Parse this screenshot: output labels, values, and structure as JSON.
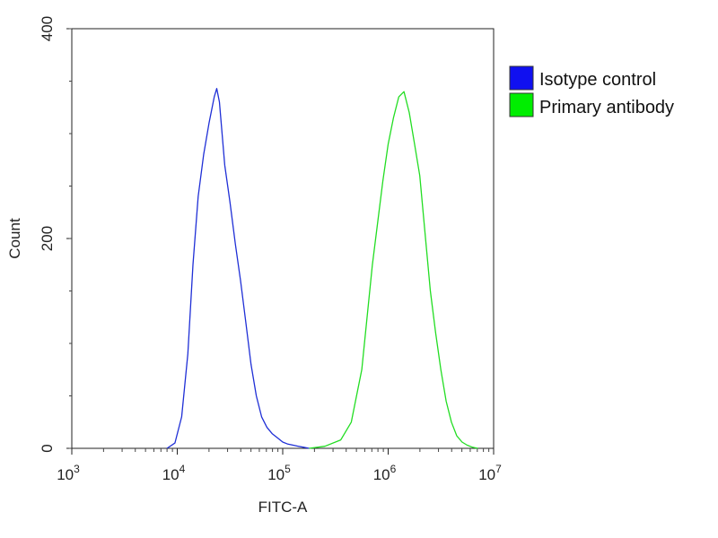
{
  "chart_data": {
    "type": "line",
    "title": "",
    "xlabel": "FITC-A",
    "ylabel": "Count",
    "x_scale": "log",
    "xlim": [
      1000,
      10000000
    ],
    "ylim": [
      0,
      400
    ],
    "x_ticks": [
      {
        "value": 1000,
        "base": "10",
        "exp": "3"
      },
      {
        "value": 10000,
        "base": "10",
        "exp": "4"
      },
      {
        "value": 100000,
        "base": "10",
        "exp": "5"
      },
      {
        "value": 1000000,
        "base": "10",
        "exp": "6"
      },
      {
        "value": 10000000,
        "base": "10",
        "exp": "7"
      }
    ],
    "y_ticks": [
      {
        "value": 0,
        "label": "0"
      },
      {
        "value": 200,
        "label": "200"
      },
      {
        "value": 400,
        "label": "400"
      }
    ],
    "grid": false,
    "legend_position": "right-top",
    "series": [
      {
        "name": "Isotype control",
        "color": "#1f2fd6",
        "swatch_color": "#1010f0",
        "x": [
          8000,
          9500,
          11000,
          12600,
          14100,
          15800,
          17800,
          20000,
          22400,
          23700,
          25100,
          28200,
          31600,
          35500,
          39800,
          44700,
          50100,
          56200,
          63100,
          70800,
          79400,
          89100,
          100000,
          112000,
          126000,
          141000,
          158000,
          178000
        ],
        "values": [
          0,
          5,
          30,
          90,
          175,
          240,
          280,
          310,
          335,
          343,
          330,
          270,
          235,
          195,
          160,
          120,
          80,
          50,
          30,
          20,
          14,
          10,
          6,
          4,
          3,
          2,
          1,
          0
        ]
      },
      {
        "name": "Primary antibody",
        "color": "#22dd22",
        "swatch_color": "#00ee00",
        "x": [
          178000,
          251000,
          355000,
          447000,
          562000,
          708000,
          891000,
          1000000,
          1122000,
          1259000,
          1413000,
          1585000,
          1778000,
          1995000,
          2239000,
          2512000,
          2818000,
          3162000,
          3548000,
          3981000,
          4467000,
          5012000,
          5623000,
          6310000,
          7079000
        ],
        "values": [
          0,
          2,
          8,
          25,
          75,
          175,
          255,
          290,
          315,
          335,
          340,
          320,
          290,
          260,
          205,
          150,
          110,
          75,
          45,
          25,
          12,
          6,
          3,
          1,
          0
        ]
      }
    ]
  }
}
